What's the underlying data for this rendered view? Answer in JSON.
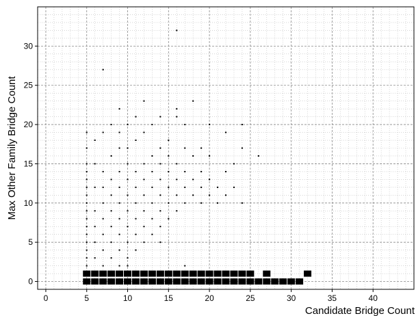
{
  "chart_data": {
    "type": "scatter",
    "title": "",
    "xlabel": "Candidate Bridge Count",
    "ylabel": "Max Other Family Bridge Count",
    "xlim": [
      -1,
      45
    ],
    "ylim": [
      -1,
      35
    ],
    "xticks": [
      0,
      5,
      10,
      15,
      20,
      25,
      30,
      35,
      40
    ],
    "yticks": [
      0,
      5,
      10,
      15,
      20,
      25,
      30
    ],
    "grid": true,
    "legend": "none",
    "marker_color": "#000000",
    "series": [
      {
        "points": [
          [
            5,
            0
          ],
          [
            6,
            0
          ],
          [
            7,
            0
          ],
          [
            8,
            0
          ],
          [
            9,
            0
          ],
          [
            10,
            0
          ],
          [
            11,
            0
          ],
          [
            12,
            0
          ],
          [
            13,
            0
          ],
          [
            14,
            0
          ],
          [
            15,
            0
          ],
          [
            16,
            0
          ],
          [
            17,
            0
          ],
          [
            18,
            0
          ],
          [
            19,
            0
          ],
          [
            20,
            0
          ],
          [
            21,
            0
          ],
          [
            22,
            0
          ],
          [
            23,
            0
          ],
          [
            24,
            0
          ],
          [
            25,
            0
          ],
          [
            26,
            0
          ],
          [
            27,
            0
          ],
          [
            28,
            0
          ],
          [
            29,
            0
          ],
          [
            30,
            0
          ],
          [
            31,
            0
          ],
          [
            5,
            1
          ],
          [
            6,
            1
          ],
          [
            7,
            1
          ],
          [
            8,
            1
          ],
          [
            9,
            1
          ],
          [
            10,
            1
          ],
          [
            11,
            1
          ],
          [
            12,
            1
          ],
          [
            13,
            1
          ],
          [
            14,
            1
          ],
          [
            15,
            1
          ],
          [
            16,
            1
          ],
          [
            17,
            1
          ],
          [
            18,
            1
          ],
          [
            19,
            1
          ],
          [
            20,
            1
          ],
          [
            21,
            1
          ],
          [
            22,
            1
          ],
          [
            23,
            1
          ],
          [
            24,
            1
          ],
          [
            25,
            1
          ],
          [
            27,
            1
          ],
          [
            32,
            1
          ],
          [
            5,
            2
          ],
          [
            5,
            3
          ],
          [
            5,
            4
          ],
          [
            5,
            5
          ],
          [
            5,
            6
          ],
          [
            5,
            7
          ],
          [
            5,
            8
          ],
          [
            5,
            9
          ],
          [
            5,
            10
          ],
          [
            5,
            11
          ],
          [
            5,
            12
          ],
          [
            5,
            13
          ],
          [
            5,
            14
          ],
          [
            5,
            15
          ],
          [
            5,
            17
          ],
          [
            5,
            19
          ],
          [
            6,
            3
          ],
          [
            6,
            5
          ],
          [
            6,
            7
          ],
          [
            6,
            9
          ],
          [
            6,
            12
          ],
          [
            6,
            15
          ],
          [
            6,
            18
          ],
          [
            7,
            2
          ],
          [
            7,
            4
          ],
          [
            7,
            6
          ],
          [
            7,
            8
          ],
          [
            7,
            10
          ],
          [
            7,
            12
          ],
          [
            7,
            14
          ],
          [
            7,
            19
          ],
          [
            7,
            27
          ],
          [
            8,
            3
          ],
          [
            8,
            5
          ],
          [
            8,
            7
          ],
          [
            8,
            9
          ],
          [
            8,
            11
          ],
          [
            8,
            13
          ],
          [
            8,
            16
          ],
          [
            8,
            20
          ],
          [
            9,
            2
          ],
          [
            9,
            4
          ],
          [
            9,
            6
          ],
          [
            9,
            8
          ],
          [
            9,
            10
          ],
          [
            9,
            12
          ],
          [
            9,
            14
          ],
          [
            9,
            17
          ],
          [
            9,
            19
          ],
          [
            9,
            22
          ],
          [
            10,
            2
          ],
          [
            10,
            3
          ],
          [
            10,
            5
          ],
          [
            10,
            7
          ],
          [
            10,
            9
          ],
          [
            10,
            11
          ],
          [
            10,
            13
          ],
          [
            10,
            15
          ],
          [
            10,
            17
          ],
          [
            10,
            20
          ],
          [
            11,
            4
          ],
          [
            11,
            6
          ],
          [
            11,
            8
          ],
          [
            11,
            10
          ],
          [
            11,
            12
          ],
          [
            11,
            14
          ],
          [
            11,
            18
          ],
          [
            11,
            21
          ],
          [
            12,
            5
          ],
          [
            12,
            7
          ],
          [
            12,
            9
          ],
          [
            12,
            11
          ],
          [
            12,
            13
          ],
          [
            12,
            15
          ],
          [
            12,
            19
          ],
          [
            12,
            23
          ],
          [
            13,
            6
          ],
          [
            13,
            8
          ],
          [
            13,
            10
          ],
          [
            13,
            12
          ],
          [
            13,
            14
          ],
          [
            13,
            16
          ],
          [
            13,
            20
          ],
          [
            14,
            5
          ],
          [
            14,
            7
          ],
          [
            14,
            9
          ],
          [
            14,
            11
          ],
          [
            14,
            13
          ],
          [
            14,
            15
          ],
          [
            14,
            17
          ],
          [
            14,
            21
          ],
          [
            15,
            8
          ],
          [
            15,
            10
          ],
          [
            15,
            12
          ],
          [
            15,
            14
          ],
          [
            15,
            16
          ],
          [
            15,
            18
          ],
          [
            16,
            9
          ],
          [
            16,
            11
          ],
          [
            16,
            13
          ],
          [
            16,
            15
          ],
          [
            16,
            21
          ],
          [
            16,
            22
          ],
          [
            16,
            32
          ],
          [
            17,
            2
          ],
          [
            17,
            10
          ],
          [
            17,
            12
          ],
          [
            17,
            14
          ],
          [
            17,
            17
          ],
          [
            17,
            20
          ],
          [
            18,
            11
          ],
          [
            18,
            13
          ],
          [
            18,
            16
          ],
          [
            18,
            23
          ],
          [
            19,
            10
          ],
          [
            19,
            12
          ],
          [
            19,
            14
          ],
          [
            19,
            17
          ],
          [
            20,
            11
          ],
          [
            20,
            13
          ],
          [
            20,
            16
          ],
          [
            20,
            20
          ],
          [
            21,
            10
          ],
          [
            21,
            12
          ],
          [
            22,
            11
          ],
          [
            22,
            14
          ],
          [
            22,
            19
          ],
          [
            23,
            12
          ],
          [
            23,
            15
          ],
          [
            24,
            10
          ],
          [
            24,
            17
          ],
          [
            24,
            20
          ],
          [
            26,
            16
          ]
        ]
      }
    ]
  }
}
